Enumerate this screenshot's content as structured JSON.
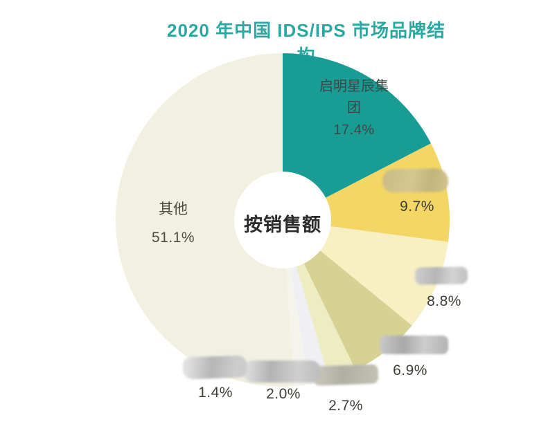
{
  "title": "2020 年中国 IDS/IPS 市场品牌结构",
  "center_label": "按销售额",
  "accent_colors": {
    "title_teal": "#2BA8A2",
    "slice_teal": "#199C94"
  },
  "chart_data": {
    "type": "pie",
    "variant": "donut",
    "title": "2020 年中国 IDS/IPS 市场品牌结构",
    "center_label": "按销售额",
    "unit": "percent",
    "direction": "clockwise",
    "start_angle_deg": 0,
    "legend": "none",
    "slices": [
      {
        "id": "qimingxingchen",
        "label": "启明星辰集团",
        "label_lines": [
          "启明星辰集",
          "团"
        ],
        "value": 17.4,
        "pct_label": "17.4%",
        "color": "#199C94",
        "label_redacted": false
      },
      {
        "id": "brand-2",
        "label": "",
        "value": 9.7,
        "pct_label": "9.7%",
        "color": "#F3D666",
        "label_redacted": true
      },
      {
        "id": "brand-3",
        "label": "",
        "value": 8.8,
        "pct_label": "8.8%",
        "color": "#F8EFC2",
        "label_redacted": true
      },
      {
        "id": "brand-4",
        "label": "",
        "value": 6.9,
        "pct_label": "6.9%",
        "color": "#D7D294",
        "label_redacted": true
      },
      {
        "id": "brand-5",
        "label": "",
        "value": 2.7,
        "pct_label": "2.7%",
        "color": "#EEECC3",
        "label_redacted": true
      },
      {
        "id": "brand-6",
        "label": "",
        "value": 2.0,
        "pct_label": "2.0%",
        "color": "#F0F0F4",
        "label_redacted": true
      },
      {
        "id": "brand-7",
        "label": "",
        "value": 1.4,
        "pct_label": "1.4%",
        "color": "#F4F4EC",
        "label_redacted": true
      },
      {
        "id": "others",
        "label": "其他",
        "value": 51.1,
        "pct_label": "51.1%",
        "color": "#F2F1E1",
        "label_redacted": false
      }
    ]
  }
}
